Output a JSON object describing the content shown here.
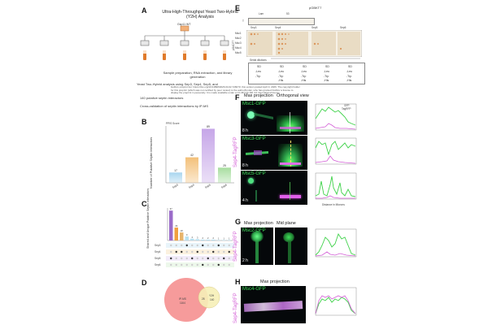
{
  "panels": {
    "A": {
      "letter": "A",
      "title": "Ultra-High-Throughput Yeast Two-Hybrid (Y2H) Analysis",
      "strain_label": "Gsp11 WT",
      "caption": "Sample preparation, RNA extraction, and library generation",
      "footer_line1": "Yeast Two-Hybrid analysis using Sep3, Sep4, Sep5, and",
      "footer_line2": "140 putative septin interactors",
      "footer_line3": "Cross-validation of septin interactions by IP-MS"
    },
    "B": {
      "letter": "B",
      "ylabel": "Number of Putative Septin Interactors",
      "legend_title": "PPIS Score"
    },
    "C": {
      "letter": "C",
      "ylabel": "Shared and Unique Putative Septin Interactors",
      "sets": [
        "Sep3",
        "Sep4",
        "Sep5",
        "Sep6"
      ]
    },
    "D": {
      "letter": "D",
      "set_a_label": "IP-MS",
      "set_a_count": "1164",
      "set_b_label": "Y2H",
      "set_b_count": "140",
      "overlap": "28"
    },
    "E": {
      "letter": "E",
      "vector": "pGBKT7",
      "col_lam": "Lam",
      "col_53": "53",
      "row_T": "T",
      "gal4_label": "pGADT7",
      "cols": [
        "Sep3",
        "Sep4",
        "Sep5",
        "Sep6"
      ],
      "rows": [
        "Msc1",
        "Msc2",
        "Msc3",
        "Msc4",
        "Msc5"
      ],
      "serial": "Serial dilutions",
      "media": [
        {
          "a": "SD",
          "b": "-Leu",
          "c": "-Trp"
        },
        {
          "a": "SD",
          "b": "-Leu",
          "c": "-Trp",
          "d": "-His"
        },
        {
          "a": "SD",
          "b": "-Leu",
          "c": "-Trp",
          "d": "-His"
        },
        {
          "a": "SD",
          "b": "-Leu",
          "c": "-Trp",
          "d": "-His"
        },
        {
          "a": "SD",
          "b": "-Leu",
          "c": "-Trp",
          "d": "-His"
        }
      ]
    },
    "F": {
      "letter": "F",
      "header_max": "Max projection",
      "header_ortho": "Orthogonal view",
      "side_label": "Sep4-TagRFP",
      "rows": [
        {
          "protein": "Msc1-GFP",
          "time": "8 h"
        },
        {
          "protein": "Msc3-GFP",
          "time": "8 h"
        },
        {
          "protein": "Msc5-GFP",
          "time": "4 h"
        }
      ],
      "legend_gfp": "GFP",
      "legend_rfp": "TagRFP",
      "xlabel": "Distance in Microns",
      "ylabel": "Rel. Int."
    },
    "G": {
      "letter": "G",
      "header_max": "Max projection",
      "header_mid": "Mid plane",
      "side_label": "Sep4-TagRFP",
      "protein": "Msc2-GFP",
      "time": "2 h"
    },
    "H": {
      "letter": "H",
      "header_max": "Max projection",
      "side_label": "Sep4-TagRFP",
      "protein": "Msc4-GFP"
    },
    "preprint_notice": "bioRxiv preprint doi: https://doi.org/10.64898/2026.04.02.726073; this version posted April 3, 2026. The copyright holder for this preprint (which was not certified by peer review) is the author/funder, who has granted bioRxiv a license to display the preprint in perpetuity. It is made available under a CC-BY-NC-ND 4.0 International license."
  },
  "chart_data": [
    {
      "type": "bar",
      "title": "",
      "categories": [
        "Sep3",
        "Sep4",
        "Sep5",
        "Sep6"
      ],
      "values": [
        17,
        42,
        89,
        25
      ],
      "ylabel": "Number of Putative Septin Interactors",
      "colors": [
        "#a9d6ef",
        "#f3c07a",
        "#c6a6e8",
        "#a7dd9f"
      ]
    },
    {
      "type": "bar",
      "title": "",
      "values": [
        67,
        29,
        18,
        9,
        4,
        3,
        2,
        2,
        2,
        1,
        1,
        1
      ],
      "ylabel": "Shared and Unique Putative Septin Interactors",
      "colors": [
        "#9b6cc9",
        "#f0a040",
        "#e7b46b",
        "#b7e0f0"
      ]
    }
  ]
}
